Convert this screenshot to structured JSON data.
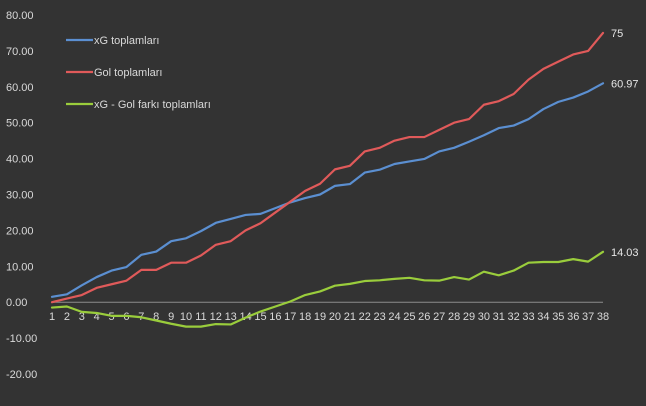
{
  "chart_data": {
    "type": "line",
    "title": "",
    "xlabel": "",
    "ylabel": "",
    "x": [
      1,
      2,
      3,
      4,
      5,
      6,
      7,
      8,
      9,
      10,
      11,
      12,
      13,
      14,
      15,
      16,
      17,
      18,
      19,
      20,
      21,
      22,
      23,
      24,
      25,
      26,
      27,
      28,
      29,
      30,
      31,
      32,
      33,
      34,
      35,
      36,
      37,
      38
    ],
    "y_ticks": [
      "80.00",
      "70.00",
      "60.00",
      "50.00",
      "40.00",
      "30.00",
      "20.00",
      "10.00",
      "0.00",
      "-10.00",
      "-20.00"
    ],
    "ylim": [
      -20,
      80
    ],
    "grid": false,
    "legend_position": "top-left",
    "background": "#333333",
    "series": [
      {
        "name": "xG toplamları",
        "color": "#5b8fd1",
        "values": [
          1.5,
          2.2,
          4.7,
          7.0,
          8.8,
          9.8,
          13.2,
          14.1,
          17.0,
          17.8,
          19.8,
          22.1,
          23.2,
          24.3,
          24.6,
          26.2,
          27.8,
          29.0,
          30.0,
          32.4,
          32.9,
          36.1,
          36.9,
          38.5,
          39.2,
          39.9,
          42.0,
          43.0,
          44.7,
          46.5,
          48.5,
          49.2,
          51.0,
          53.8,
          55.8,
          57.0,
          58.7,
          60.97
        ],
        "end_label": "60.97"
      },
      {
        "name": "Gol toplamları",
        "color": "#e05a5a",
        "values": [
          0.0,
          1.0,
          2.0,
          4.0,
          5.0,
          6.0,
          9.0,
          9.0,
          11.0,
          11.0,
          13.0,
          16.0,
          17.0,
          20.0,
          22.0,
          25.0,
          28.0,
          31.0,
          33.0,
          37.0,
          38.0,
          42.0,
          43.0,
          45.0,
          46.0,
          46.0,
          48.0,
          50.0,
          51.0,
          55.0,
          56.0,
          58.0,
          62.0,
          65.0,
          67.0,
          69.0,
          70.0,
          75.0
        ],
        "end_label": "75"
      },
      {
        "name": "xG - Gol farkı toplamları",
        "color": "#9acd3c",
        "values": [
          -1.5,
          -1.2,
          -2.7,
          -3.0,
          -3.8,
          -3.8,
          -4.2,
          -5.1,
          -6.0,
          -6.8,
          -6.8,
          -6.1,
          -6.2,
          -4.3,
          -2.6,
          -1.2,
          0.2,
          2.0,
          3.0,
          4.6,
          5.1,
          5.9,
          6.1,
          6.5,
          6.8,
          6.1,
          6.0,
          7.0,
          6.3,
          8.5,
          7.5,
          8.8,
          11.0,
          11.2,
          11.2,
          12.0,
          11.3,
          14.03
        ],
        "end_label": "14.03"
      }
    ]
  }
}
